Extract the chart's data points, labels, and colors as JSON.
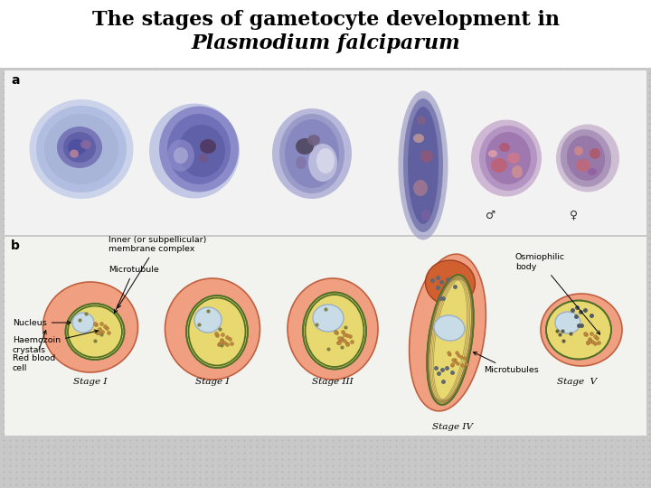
{
  "title_line1": "The stages of gametocyte development in",
  "title_line2": "Plasmodium falciparum",
  "title_fontsize": 16,
  "background_color": "#c8c8c8",
  "panel_a_label": "a",
  "panel_b_label": "b",
  "stage_labels": [
    "Stage I",
    "Stage I",
    "Stage III",
    "Stage IV",
    "Stage  V"
  ],
  "sex_symbols": [
    "♂",
    "♀"
  ],
  "panel_a_bg": "#f0f0f0",
  "panel_b_bg": "#f8f8f0",
  "rbc_color": "#f0a080",
  "rbc_edge": "#c06040",
  "inner_cell_color": "#e8d870",
  "inner_cell_edge": "#607830",
  "nucleus_color": "#c8dce8",
  "nucleus_edge": "#9ab0c8",
  "haemo_color": "#c09060",
  "membrane_color": "#507028"
}
